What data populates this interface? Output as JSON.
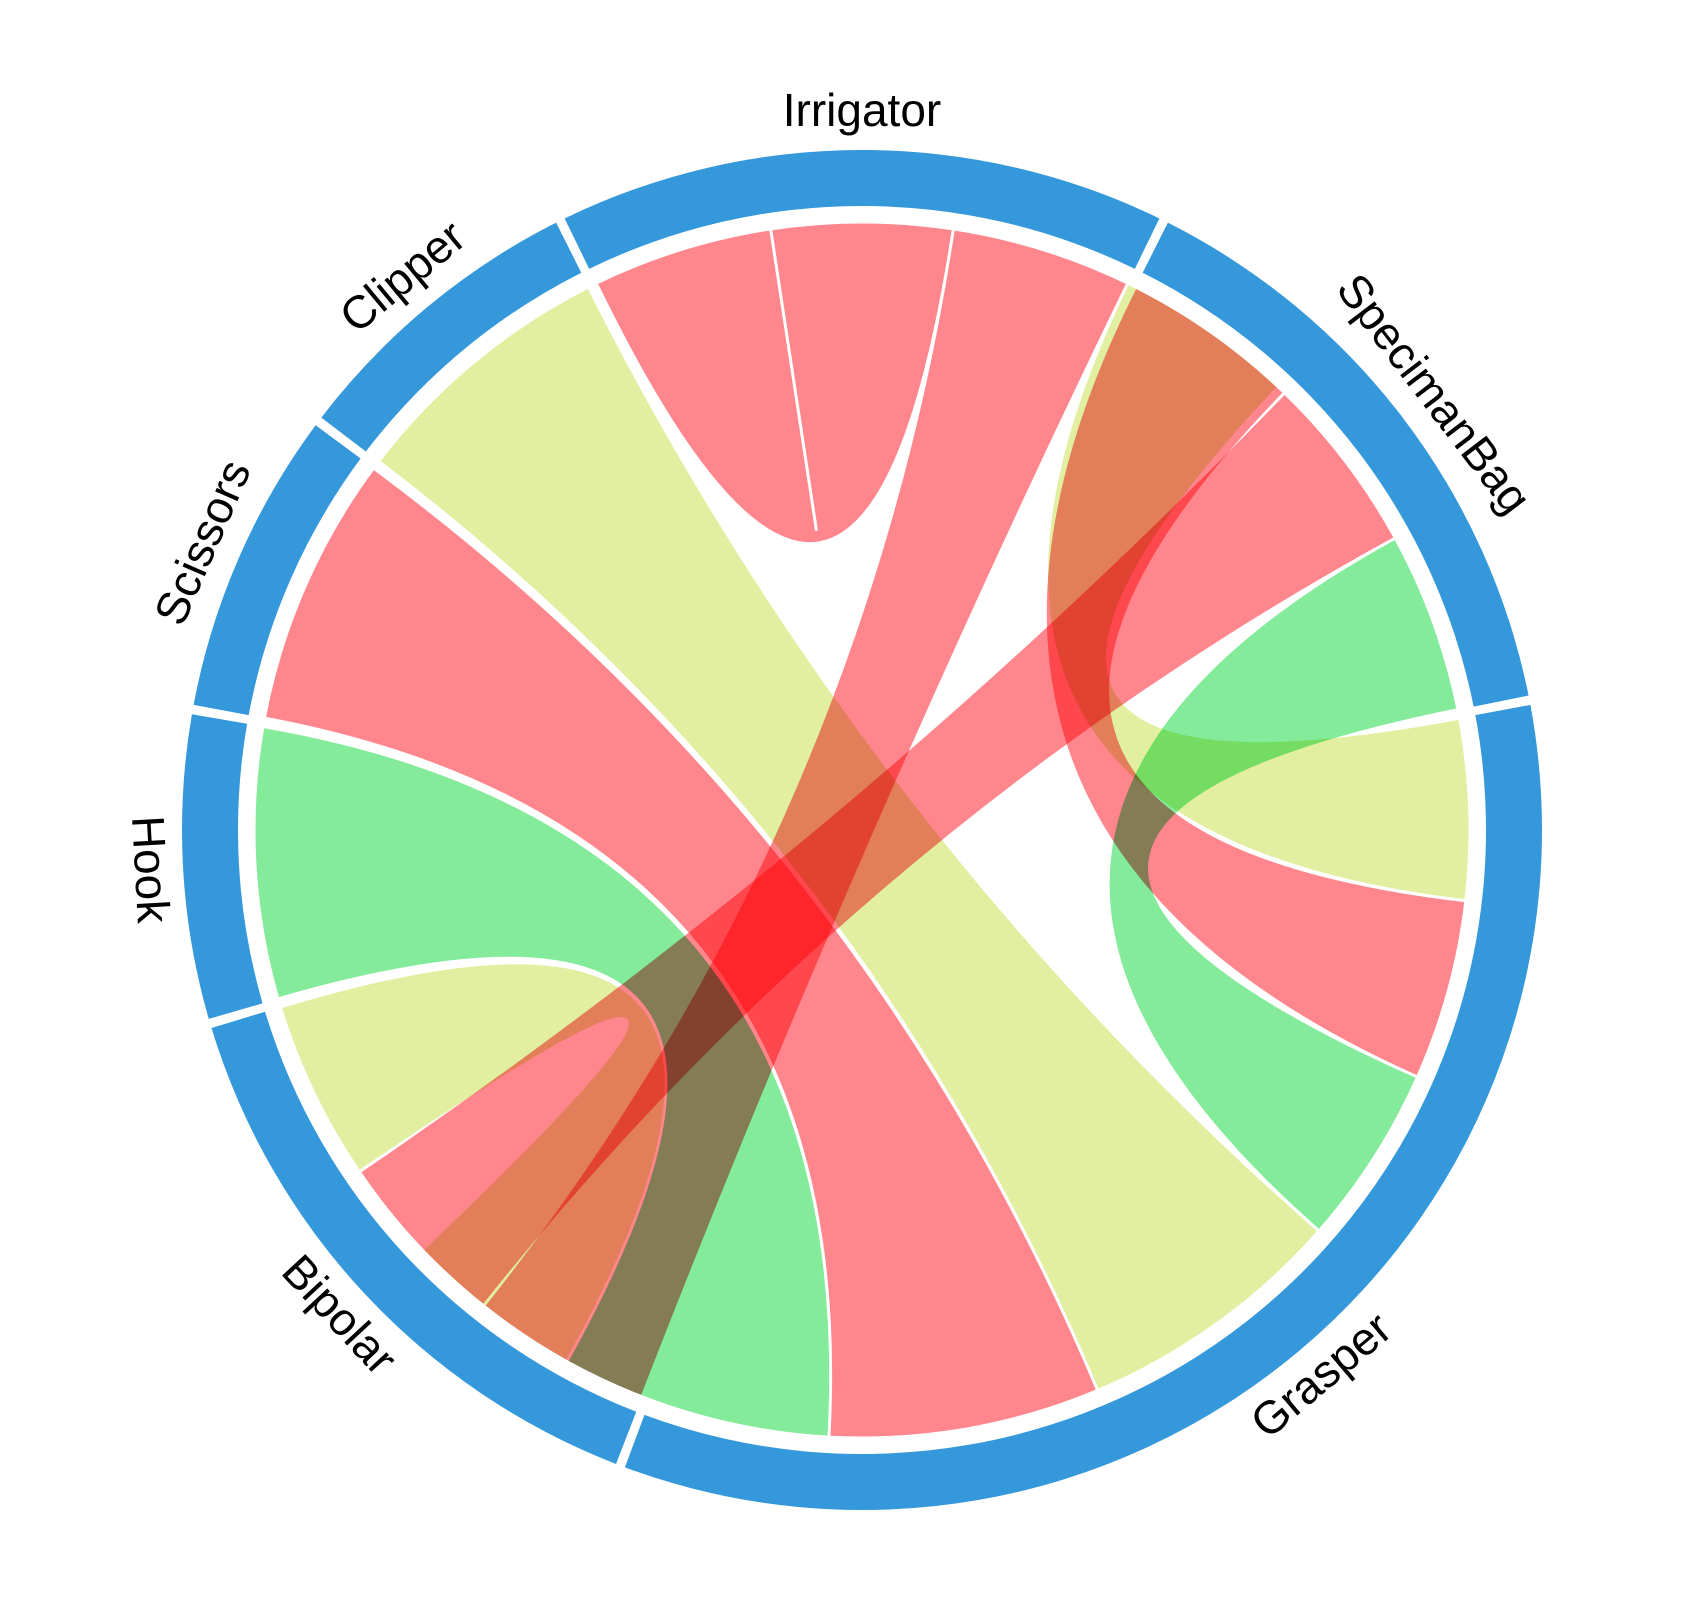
{
  "chart_data": {
    "type": "chord",
    "nodes": [
      {
        "name": "Irrigator",
        "value": 6
      },
      {
        "name": "SpecimanBag",
        "value": 6
      },
      {
        "name": "Grasper",
        "value": 14
      },
      {
        "name": "Bipolar",
        "value": 6
      },
      {
        "name": "Hook",
        "value": 3
      },
      {
        "name": "Scissors",
        "value": 3
      },
      {
        "name": "Clipper",
        "value": 3
      }
    ],
    "links": [
      {
        "source": "Irrigator",
        "target": "Irrigator",
        "value": 2,
        "color": "red"
      },
      {
        "source": "Irrigator",
        "target": "Bipolar",
        "value": 2,
        "color": "red"
      },
      {
        "source": "Irrigator",
        "target": "Grasper",
        "value": 2,
        "color": "yellow"
      },
      {
        "source": "SpecimanBag",
        "target": "Grasper",
        "value": 2,
        "color": "red"
      },
      {
        "source": "SpecimanBag",
        "target": "Bipolar",
        "value": 2,
        "color": "red"
      },
      {
        "source": "SpecimanBag",
        "target": "Grasper",
        "value": 2,
        "color": "green"
      },
      {
        "source": "Clipper",
        "target": "Grasper",
        "value": 3,
        "color": "yellow"
      },
      {
        "source": "Scissors",
        "target": "Grasper",
        "value": 3,
        "color": "red"
      },
      {
        "source": "Hook",
        "target": "Grasper",
        "value": 3,
        "color": "green"
      },
      {
        "source": "Bipolar",
        "target": "Grasper",
        "value": 2,
        "color": "yellow"
      }
    ],
    "colors": {
      "arc": "#3498db",
      "red": "#ff6b74",
      "yellow": "#dceb8b",
      "green": "#68e682"
    }
  }
}
